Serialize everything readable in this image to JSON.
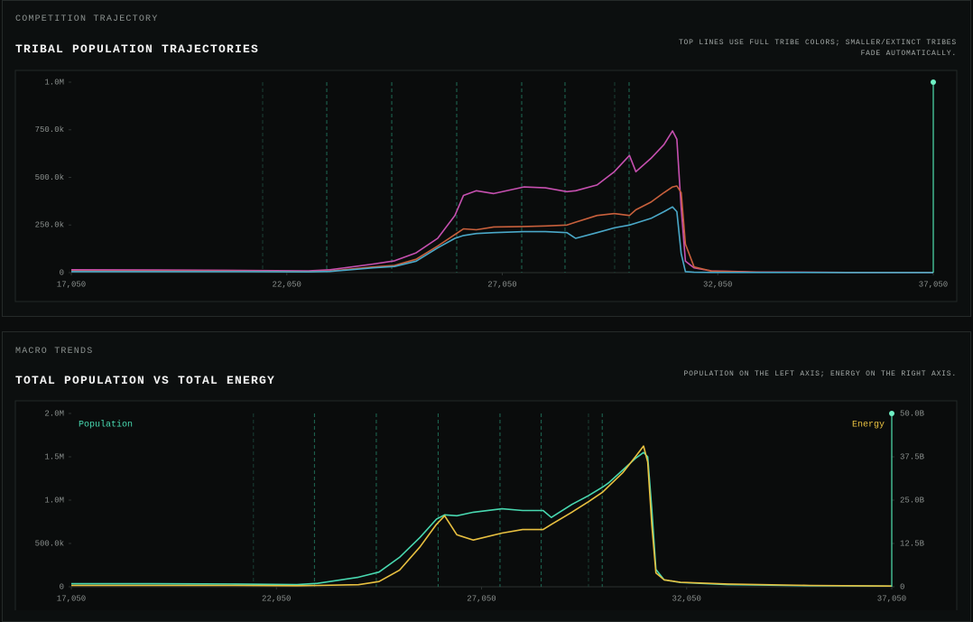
{
  "chart_data": [
    {
      "section": "COMPETITION TRAJECTORY",
      "type": "line",
      "title": "TRIBAL POPULATION TRAJECTORIES",
      "subtitle": "TOP LINES USE FULL TRIBE COLORS; SMALLER/EXTINCT TRIBES FADE AUTOMATICALLY.",
      "x": [
        17050,
        19050,
        21050,
        22550,
        23050,
        24050,
        24550,
        25050,
        25550,
        25950,
        26150,
        26450,
        26850,
        27550,
        28050,
        28550,
        28750,
        29250,
        29650,
        30000,
        30150,
        30500,
        30800,
        31000,
        31100,
        31200,
        31300,
        31500,
        31900,
        33050,
        35050,
        37050
      ],
      "xlim": [
        17050,
        37050
      ],
      "xticks": [
        {
          "value": 17050,
          "label": "17,050"
        },
        {
          "value": 22050,
          "label": "22,050"
        },
        {
          "value": 27050,
          "label": "27,050"
        },
        {
          "value": 32050,
          "label": "32,050"
        },
        {
          "value": 37050,
          "label": "37,050"
        }
      ],
      "ylim": [
        0,
        1000000
      ],
      "yticks": [
        0,
        {
          "value": 250000,
          "label": "250.0k"
        },
        {
          "value": 500000,
          "label": "500.0k"
        },
        {
          "value": 750000,
          "label": "750.0k"
        },
        {
          "value": 1000000,
          "label": "1.0M"
        }
      ],
      "events": [
        21490,
        22977,
        24485,
        25992,
        27500,
        28505,
        29657,
        29992
      ],
      "cursor_x": 37050,
      "series": [
        {
          "color": "#c650b0",
          "values": [
            15000,
            14000,
            12000,
            9000,
            15000,
            45000,
            62000,
            104000,
            180000,
            300000,
            405000,
            430000,
            415000,
            450000,
            445000,
            425000,
            430000,
            460000,
            530000,
            615000,
            530000,
            600000,
            672000,
            744000,
            700000,
            340000,
            60000,
            25000,
            9000,
            3000,
            1000,
            1000
          ]
        },
        {
          "color": "#c8603c",
          "values": [
            8000,
            8000,
            7000,
            5000,
            8000,
            30000,
            38000,
            70000,
            140000,
            200000,
            230000,
            225000,
            240000,
            242000,
            245000,
            250000,
            265000,
            300000,
            310000,
            300000,
            330000,
            370000,
            420000,
            450000,
            455000,
            420000,
            150000,
            30000,
            8000,
            2000,
            1000,
            1000
          ]
        },
        {
          "color": "#4aa8c8",
          "values": [
            5000,
            5000,
            5000,
            4000,
            6000,
            25000,
            32000,
            60000,
            130000,
            180000,
            195000,
            205000,
            210000,
            215000,
            215000,
            210000,
            180000,
            210000,
            235000,
            250000,
            260000,
            285000,
            320000,
            345000,
            320000,
            100000,
            5000,
            2000,
            1000,
            1000,
            500,
            500
          ]
        }
      ]
    },
    {
      "section": "MACRO TRENDS",
      "type": "line",
      "title": "TOTAL POPULATION VS TOTAL ENERGY",
      "subtitle": "POPULATION ON THE LEFT AXIS; ENERGY ON THE RIGHT AXIS.",
      "x": [
        17050,
        19050,
        21050,
        22550,
        23050,
        24050,
        24550,
        25050,
        25550,
        25950,
        26150,
        26450,
        26850,
        27550,
        28050,
        28550,
        28750,
        29250,
        29650,
        30000,
        30150,
        30500,
        30800,
        31000,
        31100,
        31200,
        31300,
        31500,
        31900,
        33050,
        35050,
        37050
      ],
      "xlim": [
        17050,
        37050
      ],
      "xticks": [
        {
          "value": 17050,
          "label": "17,050"
        },
        {
          "value": 22050,
          "label": "22,050"
        },
        {
          "value": 27050,
          "label": "27,050"
        },
        {
          "value": 32050,
          "label": "32,050"
        },
        {
          "value": 37050,
          "label": "37,050"
        }
      ],
      "ylim": [
        0,
        2000000
      ],
      "yticks": [
        0,
        {
          "value": 500000,
          "label": "500.0k"
        },
        {
          "value": 1000000,
          "label": "1.0M"
        },
        {
          "value": 1500000,
          "label": "1.5M"
        },
        {
          "value": 2000000,
          "label": "2.0M"
        }
      ],
      "y2lim": [
        0,
        50000000000
      ],
      "y2ticks": [
        0,
        {
          "value": 12500000000,
          "label": "12.5B"
        },
        {
          "value": 25000000000,
          "label": "25.0B"
        },
        {
          "value": 37500000000,
          "label": "37.5B"
        },
        {
          "value": 50000000000,
          "label": "50.0B"
        }
      ],
      "events": [
        21490,
        22977,
        24485,
        25992,
        27500,
        28505,
        29657,
        29992
      ],
      "cursor_x": 37050,
      "series": [
        {
          "name": "Population",
          "color": "#48d8b0",
          "values": [
            35000,
            35000,
            32000,
            25000,
            40000,
            110000,
            170000,
            340000,
            570000,
            780000,
            830000,
            820000,
            860000,
            900000,
            880000,
            880000,
            800000,
            950000,
            1050000,
            1150000,
            1200000,
            1350000,
            1480000,
            1550000,
            1500000,
            900000,
            200000,
            80000,
            50000,
            25000,
            12000,
            8000
          ]
        },
        {
          "name": "Energy",
          "color": "#e8c040",
          "axis": "y2",
          "values": [
            400000000,
            400000000,
            400000000,
            300000000,
            400000000,
            600000000,
            1500000000,
            4800000000,
            11500000000,
            18000000000,
            20500000000,
            15000000000,
            13500000000,
            15500000000,
            16500000000,
            16500000000,
            18000000000,
            21500000000,
            24500000000,
            27300000000,
            29000000000,
            33000000000,
            37500000000,
            40600000000,
            36000000000,
            18000000000,
            4000000000,
            2000000000,
            1300000000,
            800000000,
            400000000,
            200000000
          ]
        }
      ]
    }
  ]
}
